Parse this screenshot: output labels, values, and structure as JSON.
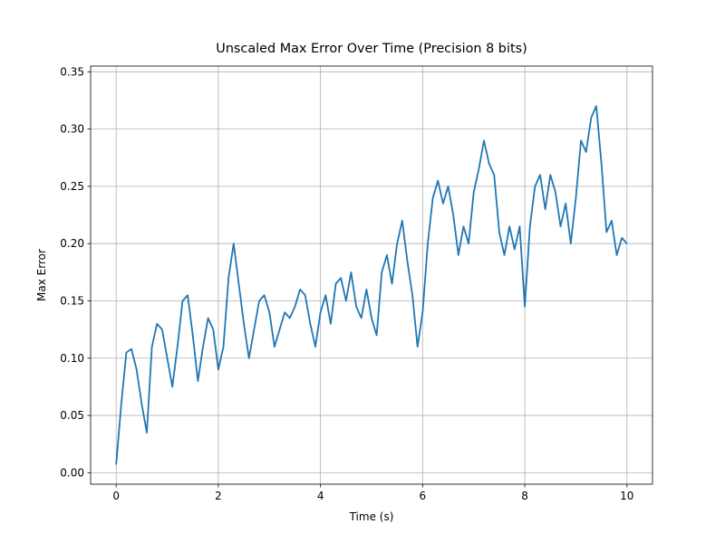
{
  "chart_data": {
    "type": "line",
    "title": "Unscaled Max Error Over Time (Precision 8 bits)",
    "x_label": "Time (s)",
    "y_label": "Max Error",
    "x": [
      0.0,
      0.1,
      0.2,
      0.3,
      0.4,
      0.5,
      0.6,
      0.7,
      0.8,
      0.9,
      1.0,
      1.1,
      1.2,
      1.3,
      1.4,
      1.5,
      1.6,
      1.7,
      1.8,
      1.9,
      2.0,
      2.1,
      2.2,
      2.3,
      2.4,
      2.5,
      2.6,
      2.7,
      2.8,
      2.9,
      3.0,
      3.1,
      3.2,
      3.3,
      3.4,
      3.5,
      3.6,
      3.7,
      3.8,
      3.9,
      4.0,
      4.1,
      4.2,
      4.3,
      4.4,
      4.5,
      4.6,
      4.7,
      4.8,
      4.9,
      5.0,
      5.1,
      5.2,
      5.3,
      5.4,
      5.5,
      5.6,
      5.7,
      5.8,
      5.9,
      6.0,
      6.1,
      6.2,
      6.3,
      6.4,
      6.5,
      6.6,
      6.7,
      6.8,
      6.9,
      7.0,
      7.1,
      7.2,
      7.3,
      7.4,
      7.5,
      7.6,
      7.7,
      7.8,
      7.9,
      8.0,
      8.1,
      8.2,
      8.3,
      8.4,
      8.5,
      8.6,
      8.7,
      8.8,
      8.9,
      9.0,
      9.1,
      9.2,
      9.3,
      9.4,
      9.5,
      9.6,
      9.7,
      9.8,
      9.9,
      10.0
    ],
    "series": [
      {
        "color": "#1f77b4",
        "values": [
          0.007,
          0.06,
          0.105,
          0.108,
          0.09,
          0.06,
          0.035,
          0.11,
          0.13,
          0.125,
          0.1,
          0.075,
          0.11,
          0.15,
          0.155,
          0.12,
          0.08,
          0.11,
          0.135,
          0.125,
          0.09,
          0.11,
          0.17,
          0.2,
          0.165,
          0.13,
          0.1,
          0.125,
          0.15,
          0.155,
          0.14,
          0.11,
          0.125,
          0.14,
          0.135,
          0.145,
          0.16,
          0.155,
          0.13,
          0.11,
          0.14,
          0.155,
          0.13,
          0.165,
          0.17,
          0.15,
          0.175,
          0.145,
          0.135,
          0.16,
          0.135,
          0.12,
          0.175,
          0.19,
          0.165,
          0.2,
          0.22,
          0.185,
          0.155,
          0.11,
          0.14,
          0.2,
          0.24,
          0.255,
          0.235,
          0.25,
          0.225,
          0.19,
          0.215,
          0.2,
          0.245,
          0.265,
          0.29,
          0.27,
          0.26,
          0.21,
          0.19,
          0.215,
          0.195,
          0.215,
          0.145,
          0.215,
          0.25,
          0.26,
          0.23,
          0.26,
          0.245,
          0.215,
          0.235,
          0.2,
          0.24,
          0.29,
          0.28,
          0.31,
          0.32,
          0.27,
          0.21,
          0.22,
          0.19,
          0.205,
          0.2
        ]
      }
    ],
    "xlim": [
      -0.5,
      10.5
    ],
    "ylim": [
      -0.01,
      0.355
    ],
    "xticks": [
      0,
      2,
      4,
      6,
      8,
      10
    ],
    "yticks": [
      {
        "value": 0,
        "label": "0.00"
      },
      {
        "value": 0.05,
        "label": "0.05"
      },
      {
        "value": 0.1,
        "label": "0.10"
      },
      {
        "value": 0.15,
        "label": "0.15"
      },
      {
        "value": 0.2,
        "label": "0.20"
      },
      {
        "value": 0.25,
        "label": "0.25"
      },
      {
        "value": 0.3,
        "label": "0.30"
      },
      {
        "value": 0.35,
        "label": "0.35"
      }
    ],
    "grid": true
  }
}
